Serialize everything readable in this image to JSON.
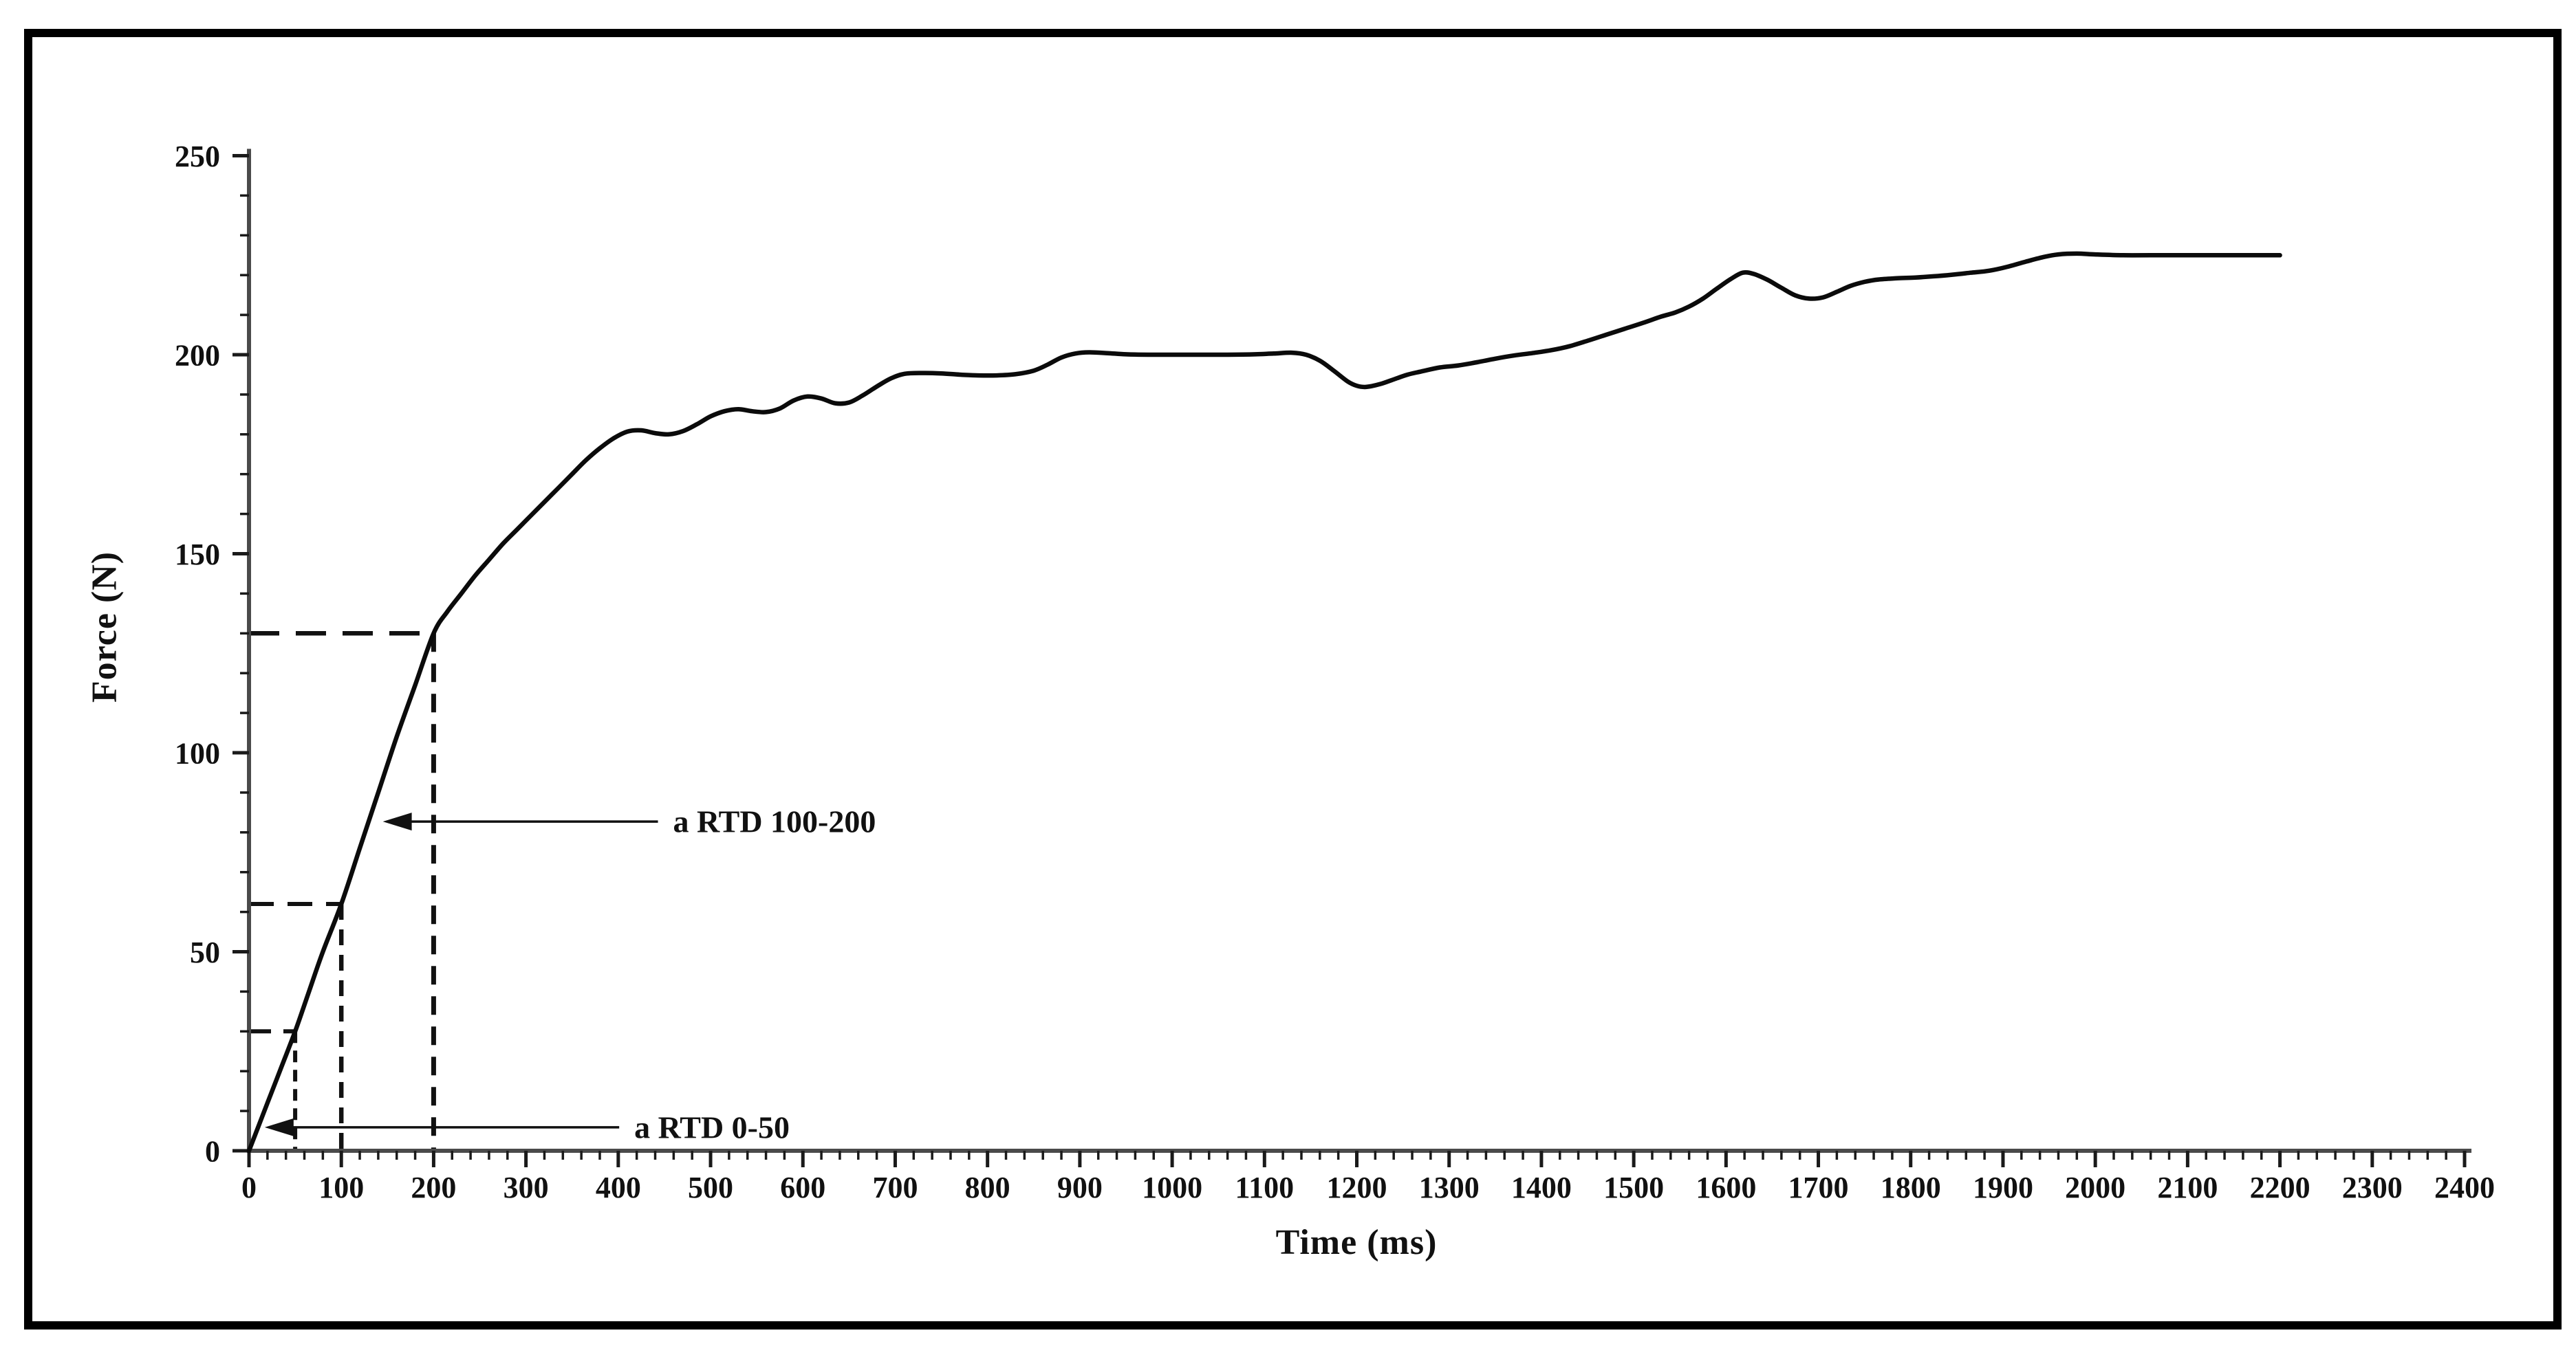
{
  "figure": {
    "background_color": "#ffffff",
    "frame_color": "#000000",
    "axis_color": "#4a4a4a",
    "tick_color": "#1a1a1a",
    "text_color": "#111111"
  },
  "chart_data": {
    "type": "line",
    "title": "",
    "xlabel": "Time (ms)",
    "ylabel": "Force (N)",
    "xlim": [
      0,
      2400
    ],
    "ylim": [
      0,
      250
    ],
    "x_major_step": 100,
    "x_minor_step": 20,
    "y_major_step": 50,
    "y_minor_step": 10,
    "grid": false,
    "legend": "none",
    "x_tick_labels": [
      0,
      100,
      200,
      300,
      400,
      500,
      600,
      700,
      800,
      900,
      1000,
      1100,
      1200,
      1300,
      1400,
      1500,
      1600,
      1700,
      1800,
      1900,
      2000,
      2100,
      2200,
      2300,
      2400
    ],
    "y_tick_labels": [
      0,
      50,
      100,
      150,
      200,
      250
    ],
    "series": [
      {
        "name": "force-time-curve",
        "color": "#0b0b0b",
        "stroke_width": 6.5,
        "points": [
          [
            0,
            0
          ],
          [
            20,
            12
          ],
          [
            35,
            21
          ],
          [
            50,
            30
          ],
          [
            65,
            40
          ],
          [
            80,
            50
          ],
          [
            100,
            62
          ],
          [
            120,
            76
          ],
          [
            140,
            90
          ],
          [
            160,
            104
          ],
          [
            180,
            117
          ],
          [
            200,
            130
          ],
          [
            215,
            135.5
          ],
          [
            230,
            140
          ],
          [
            245,
            144.5
          ],
          [
            260,
            148.5
          ],
          [
            275,
            152.5
          ],
          [
            290,
            156
          ],
          [
            305,
            159.5
          ],
          [
            320,
            163
          ],
          [
            335,
            166.5
          ],
          [
            350,
            170
          ],
          [
            365,
            173.5
          ],
          [
            380,
            176.5
          ],
          [
            395,
            179
          ],
          [
            410,
            180.7
          ],
          [
            425,
            181
          ],
          [
            440,
            180.3
          ],
          [
            455,
            180
          ],
          [
            470,
            180.8
          ],
          [
            485,
            182.5
          ],
          [
            500,
            184.5
          ],
          [
            515,
            185.8
          ],
          [
            530,
            186.3
          ],
          [
            545,
            185.8
          ],
          [
            560,
            185.6
          ],
          [
            575,
            186.5
          ],
          [
            590,
            188.5
          ],
          [
            605,
            189.5
          ],
          [
            620,
            189
          ],
          [
            635,
            187.8
          ],
          [
            650,
            188
          ],
          [
            665,
            189.8
          ],
          [
            680,
            192
          ],
          [
            695,
            194
          ],
          [
            710,
            195.2
          ],
          [
            730,
            195.4
          ],
          [
            750,
            195.3
          ],
          [
            770,
            195
          ],
          [
            790,
            194.8
          ],
          [
            810,
            194.8
          ],
          [
            830,
            195.1
          ],
          [
            850,
            196
          ],
          [
            865,
            197.5
          ],
          [
            880,
            199.3
          ],
          [
            895,
            200.3
          ],
          [
            910,
            200.6
          ],
          [
            930,
            200.4
          ],
          [
            950,
            200.1
          ],
          [
            975,
            200
          ],
          [
            1000,
            200
          ],
          [
            1030,
            200
          ],
          [
            1060,
            200
          ],
          [
            1090,
            200.1
          ],
          [
            1110,
            200.3
          ],
          [
            1130,
            200.5
          ],
          [
            1145,
            200
          ],
          [
            1160,
            198.5
          ],
          [
            1175,
            196
          ],
          [
            1190,
            193.3
          ],
          [
            1200,
            192.2
          ],
          [
            1210,
            191.9
          ],
          [
            1225,
            192.6
          ],
          [
            1240,
            193.8
          ],
          [
            1255,
            195
          ],
          [
            1270,
            195.8
          ],
          [
            1290,
            196.8
          ],
          [
            1310,
            197.3
          ],
          [
            1330,
            198.1
          ],
          [
            1350,
            199
          ],
          [
            1370,
            199.8
          ],
          [
            1390,
            200.4
          ],
          [
            1410,
            201.1
          ],
          [
            1430,
            202.1
          ],
          [
            1450,
            203.5
          ],
          [
            1470,
            205
          ],
          [
            1490,
            206.5
          ],
          [
            1510,
            208
          ],
          [
            1530,
            209.6
          ],
          [
            1545,
            210.6
          ],
          [
            1560,
            212.1
          ],
          [
            1575,
            214.1
          ],
          [
            1590,
            216.6
          ],
          [
            1605,
            219
          ],
          [
            1618,
            220.6
          ],
          [
            1630,
            220.3
          ],
          [
            1645,
            218.8
          ],
          [
            1660,
            216.8
          ],
          [
            1675,
            214.9
          ],
          [
            1690,
            214.1
          ],
          [
            1705,
            214.4
          ],
          [
            1720,
            215.8
          ],
          [
            1735,
            217.3
          ],
          [
            1750,
            218.3
          ],
          [
            1765,
            218.9
          ],
          [
            1785,
            219.2
          ],
          [
            1805,
            219.4
          ],
          [
            1825,
            219.7
          ],
          [
            1845,
            220.1
          ],
          [
            1865,
            220.6
          ],
          [
            1885,
            221.1
          ],
          [
            1905,
            222.1
          ],
          [
            1925,
            223.4
          ],
          [
            1945,
            224.6
          ],
          [
            1960,
            225.2
          ],
          [
            1980,
            225.4
          ],
          [
            2000,
            225.2
          ],
          [
            2030,
            225
          ],
          [
            2060,
            225
          ],
          [
            2100,
            225
          ],
          [
            2150,
            225
          ],
          [
            2200,
            225
          ]
        ]
      }
    ],
    "guides": [
      {
        "name": "h-130",
        "x1": 0,
        "y1": 130,
        "x2": 200,
        "y2": 130,
        "dash": "44 24",
        "w": 6.5
      },
      {
        "name": "v-200",
        "x1": 200,
        "y1": 130,
        "x2": 200,
        "y2": 0,
        "dash": "27 17",
        "w": 7
      },
      {
        "name": "h-62",
        "x1": 0,
        "y1": 62,
        "x2": 100,
        "y2": 62,
        "dash": "36 20",
        "w": 6
      },
      {
        "name": "v-100",
        "x1": 100,
        "y1": 62,
        "x2": 100,
        "y2": 0,
        "dash": "23 14",
        "w": 6.5
      },
      {
        "name": "h-30",
        "x1": 0,
        "y1": 30,
        "x2": 50,
        "y2": 30,
        "dash": "32 18",
        "w": 6
      },
      {
        "name": "v-50",
        "x1": 50,
        "y1": 30,
        "x2": 50,
        "y2": 0,
        "dash": "17 11",
        "w": 6
      }
    ],
    "annotations": [
      {
        "text": "a RTD 100-200",
        "at_n": 82.7,
        "tail_ms": 443,
        "head_ms": 145
      },
      {
        "text": "a RTD 0-50",
        "at_n": 5.9,
        "tail_ms": 401,
        "head_ms": 17
      }
    ]
  }
}
